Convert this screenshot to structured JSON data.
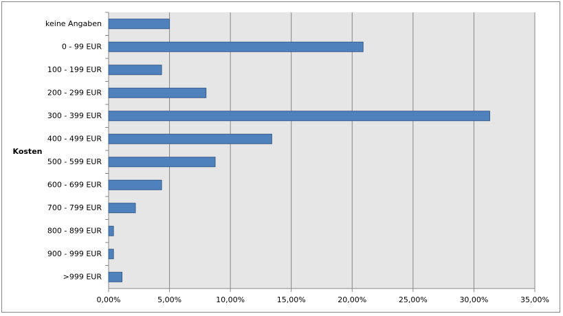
{
  "chart_data": {
    "type": "bar",
    "orientation": "horizontal",
    "y_label": "Kosten",
    "categories": [
      "keine Angaben",
      "0 - 99 EUR",
      "100 - 199 EUR",
      "200 - 299 EUR",
      "300 - 399 EUR",
      "400 - 499 EUR",
      "500 - 599 EUR",
      "600 - 699 EUR",
      "700 - 799 EUR",
      "800 - 899 EUR",
      "900 - 999 EUR",
      ">999 EUR"
    ],
    "values": [
      5.0,
      20.9,
      4.35,
      8.0,
      31.3,
      13.4,
      8.75,
      4.35,
      2.2,
      0.4,
      0.4,
      1.1
    ],
    "color": "#4f81bd",
    "xlim": [
      0,
      35
    ],
    "xticks": [
      {
        "value": 0,
        "label": "0,00%"
      },
      {
        "value": 5,
        "label": "5,00%"
      },
      {
        "value": 10,
        "label": "10,00%"
      },
      {
        "value": 15,
        "label": "15,00%"
      },
      {
        "value": 20,
        "label": "20,00%"
      },
      {
        "value": 25,
        "label": "25,00%"
      },
      {
        "value": 30,
        "label": "30,00%"
      },
      {
        "value": 35,
        "label": "35,00%"
      }
    ],
    "grid": true
  }
}
